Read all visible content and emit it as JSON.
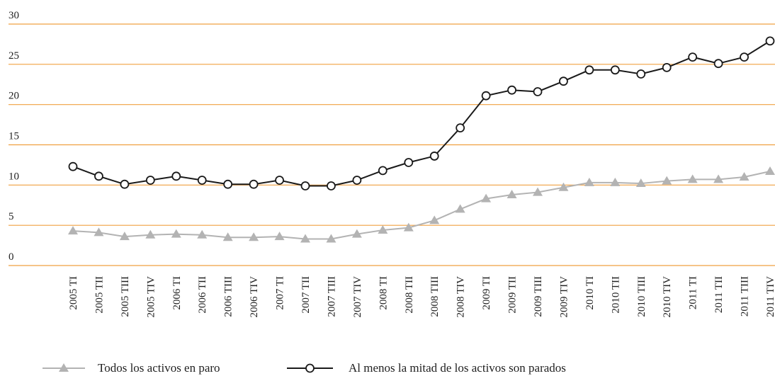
{
  "chart_data": {
    "type": "line",
    "categories": [
      "2005 TI",
      "2005 TII",
      "2005 TIII",
      "2005 TIV",
      "2006 TI",
      "2006 TII",
      "2006 TIII",
      "2006 TIV",
      "2007 TI",
      "2007 TII",
      "2007 TIII",
      "2007 TIV",
      "2008 TI",
      "2008 TII",
      "2008 TIII",
      "2008 TIV",
      "2009 TI",
      "2009 TII",
      "2009 TIII",
      "2009 TIV",
      "2010 TI",
      "2010 TII",
      "2010 TIII",
      "2010 TIV",
      "2011 TI",
      "2011 TII",
      "2011 TIII",
      "2011 TIV"
    ],
    "series": [
      {
        "name": "Todos los activos en paro",
        "color": "#b3b3b3",
        "marker": "triangle",
        "values": [
          4.3,
          4.1,
          3.6,
          3.8,
          3.9,
          3.8,
          3.5,
          3.5,
          3.6,
          3.3,
          3.3,
          3.9,
          4.4,
          4.7,
          5.6,
          7.0,
          8.3,
          8.8,
          9.1,
          9.7,
          10.3,
          10.3,
          10.2,
          10.5,
          10.7,
          10.7,
          11.0,
          11.7
        ]
      },
      {
        "name": "Al menos la mitad de los activos son parados",
        "color": "#1a1a1a",
        "marker": "circle",
        "values": [
          12.3,
          11.1,
          10.1,
          10.6,
          11.1,
          10.6,
          10.1,
          10.1,
          10.6,
          9.9,
          9.9,
          10.6,
          11.8,
          12.8,
          13.6,
          17.1,
          21.1,
          21.8,
          21.6,
          22.9,
          24.3,
          24.3,
          23.8,
          24.6,
          25.9,
          25.1,
          25.9,
          27.9
        ]
      }
    ],
    "ylim": [
      0,
      30
    ],
    "yticks": [
      0,
      5,
      10,
      15,
      20,
      25,
      30
    ],
    "grid": true,
    "grid_color": "#f0a040",
    "legend": "bottom"
  }
}
